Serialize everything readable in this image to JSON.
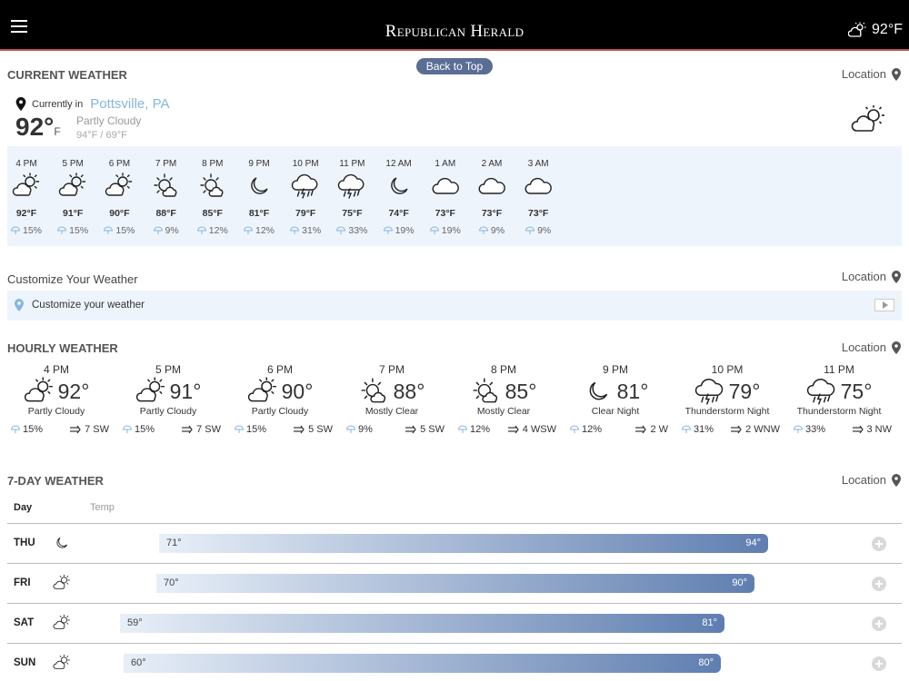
{
  "header": {
    "brand": "Republican Herald",
    "temp": "92°F"
  },
  "back_to_top": "Back to Top",
  "location_label": "Location",
  "current": {
    "section_title": "CURRENT WEATHER",
    "prefix": "Currently in",
    "city": "Pottsville, PA",
    "temp": "92°",
    "unit": "F",
    "condition": "Partly Cloudy",
    "hilo": "94°F / 69°F",
    "icon": "partly-cloudy-day-icon"
  },
  "strip": [
    {
      "time": "4 PM",
      "icon": "partly-cloudy-day",
      "temp": "92°F",
      "precip": "15%"
    },
    {
      "time": "5 PM",
      "icon": "partly-cloudy-day",
      "temp": "91°F",
      "precip": "15%"
    },
    {
      "time": "6 PM",
      "icon": "partly-cloudy-day",
      "temp": "90°F",
      "precip": "15%"
    },
    {
      "time": "7 PM",
      "icon": "mostly-clear-sun",
      "temp": "88°F",
      "precip": "9%"
    },
    {
      "time": "8 PM",
      "icon": "mostly-clear-sun",
      "temp": "85°F",
      "precip": "12%"
    },
    {
      "time": "9 PM",
      "icon": "clear-night",
      "temp": "81°F",
      "precip": "12%"
    },
    {
      "time": "10 PM",
      "icon": "thunderstorm",
      "temp": "79°F",
      "precip": "31%"
    },
    {
      "time": "11 PM",
      "icon": "thunderstorm",
      "temp": "75°F",
      "precip": "33%"
    },
    {
      "time": "12 AM",
      "icon": "clear-night",
      "temp": "74°F",
      "precip": "19%"
    },
    {
      "time": "1 AM",
      "icon": "cloudy",
      "temp": "73°F",
      "precip": "19%"
    },
    {
      "time": "2 AM",
      "icon": "cloudy",
      "temp": "73°F",
      "precip": "9%"
    },
    {
      "time": "3 AM",
      "icon": "cloudy",
      "temp": "73°F",
      "precip": "9%"
    }
  ],
  "customize": {
    "section_title": "Customize Your Weather",
    "label": "Customize your weather"
  },
  "hourly": {
    "section_title": "HOURLY WEATHER",
    "items": [
      {
        "time": "4 PM",
        "icon": "partly-cloudy-day",
        "temp": "92°",
        "condition": "Partly Cloudy",
        "precip": "15%",
        "wind": "7 SW"
      },
      {
        "time": "5 PM",
        "icon": "partly-cloudy-day",
        "temp": "91°",
        "condition": "Partly Cloudy",
        "precip": "15%",
        "wind": "7 SW"
      },
      {
        "time": "6 PM",
        "icon": "partly-cloudy-day",
        "temp": "90°",
        "condition": "Partly Cloudy",
        "precip": "15%",
        "wind": "5 SW"
      },
      {
        "time": "7 PM",
        "icon": "mostly-clear-sun",
        "temp": "88°",
        "condition": "Mostly Clear",
        "precip": "9%",
        "wind": "5 SW"
      },
      {
        "time": "8 PM",
        "icon": "mostly-clear-sun",
        "temp": "85°",
        "condition": "Mostly Clear",
        "precip": "12%",
        "wind": "4 WSW"
      },
      {
        "time": "9 PM",
        "icon": "clear-night",
        "temp": "81°",
        "condition": "Clear Night",
        "precip": "12%",
        "wind": "2 W"
      },
      {
        "time": "10 PM",
        "icon": "thunderstorm",
        "temp": "79°",
        "condition": "Thunderstorm Night",
        "precip": "31%",
        "wind": "2 WNW"
      },
      {
        "time": "11 PM",
        "icon": "thunderstorm",
        "temp": "75°",
        "condition": "Thunderstorm Night",
        "precip": "33%",
        "wind": "3 NW"
      }
    ]
  },
  "seven_day": {
    "section_title": "7-DAY WEATHER",
    "col_day": "Day",
    "col_temp": "Temp",
    "days": [
      {
        "day": "THU",
        "icon": "clear-night",
        "low": "71°",
        "high": "94°"
      },
      {
        "day": "FRI",
        "icon": "partly-cloudy-day",
        "low": "70°",
        "high": "90°"
      },
      {
        "day": "SAT",
        "icon": "partly-cloudy-day",
        "low": "59°",
        "high": "81°"
      },
      {
        "day": "SUN",
        "icon": "partly-cloudy-day",
        "low": "60°",
        "high": "80°"
      }
    ]
  }
}
